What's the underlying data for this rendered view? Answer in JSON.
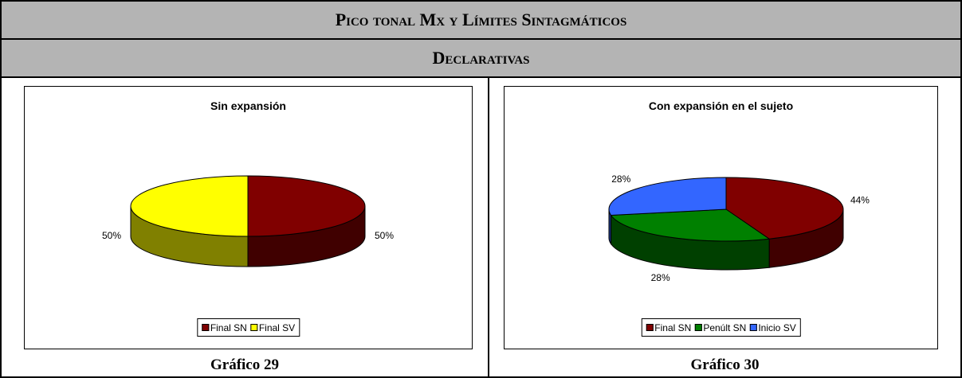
{
  "header": {
    "title": "Pico tonal Mx y Límites Sintagmáticos",
    "subtitle": "Declarativas"
  },
  "chart_data": [
    {
      "type": "pie3d",
      "title": "Sin expansión",
      "caption": "Gráfico 29",
      "categories": [
        "Final SN",
        "Final SV"
      ],
      "values": [
        50,
        50
      ],
      "value_labels": [
        "50%",
        "50%"
      ],
      "colors": [
        "#800000",
        "#ffff00"
      ],
      "legend": "bottom"
    },
    {
      "type": "pie3d",
      "title": "Con expansión en el sujeto",
      "caption": "Gráfico 30",
      "categories": [
        "Final SN",
        "Penúlt SN",
        "Inicio SV"
      ],
      "values": [
        44,
        28,
        28
      ],
      "value_labels": [
        "44%",
        "28%",
        "28%"
      ],
      "colors": [
        "#800000",
        "#008000",
        "#3366ff"
      ],
      "legend": "bottom"
    }
  ]
}
